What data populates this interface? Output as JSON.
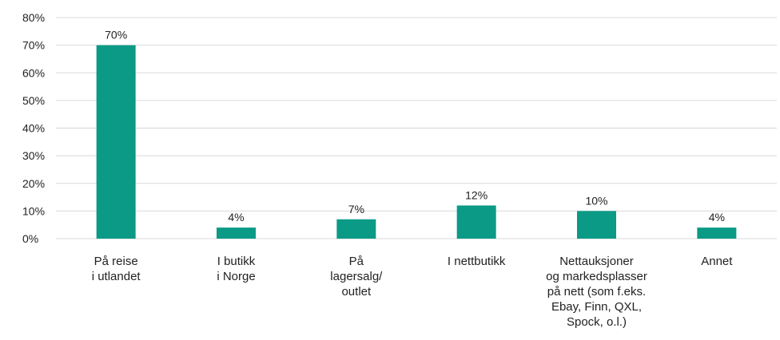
{
  "chart_data": {
    "type": "bar",
    "categories": [
      [
        "På reise",
        "i utlandet"
      ],
      [
        "I butikk",
        "i Norge"
      ],
      [
        "På",
        "lagersalg/",
        "outlet"
      ],
      [
        "I nettbutikk"
      ],
      [
        "Nettauksjoner",
        "og markedsplasser",
        "på nett (som f.eks.",
        "Ebay, Finn, QXL,",
        "Spock, o.l.)"
      ],
      [
        "Annet"
      ]
    ],
    "values": [
      70,
      4,
      7,
      12,
      10,
      4
    ],
    "data_labels": [
      "70%",
      "4%",
      "7%",
      "12%",
      "10%",
      "4%"
    ],
    "ylim": [
      0,
      80
    ],
    "yticks": [
      0,
      10,
      20,
      30,
      40,
      50,
      60,
      70,
      80
    ],
    "ytick_labels": [
      "0%",
      "10%",
      "20%",
      "30%",
      "40%",
      "50%",
      "60%",
      "70%",
      "80%"
    ],
    "grid": true,
    "bar_color": "#0a9a86",
    "grid_color": "#d9d9d9"
  }
}
